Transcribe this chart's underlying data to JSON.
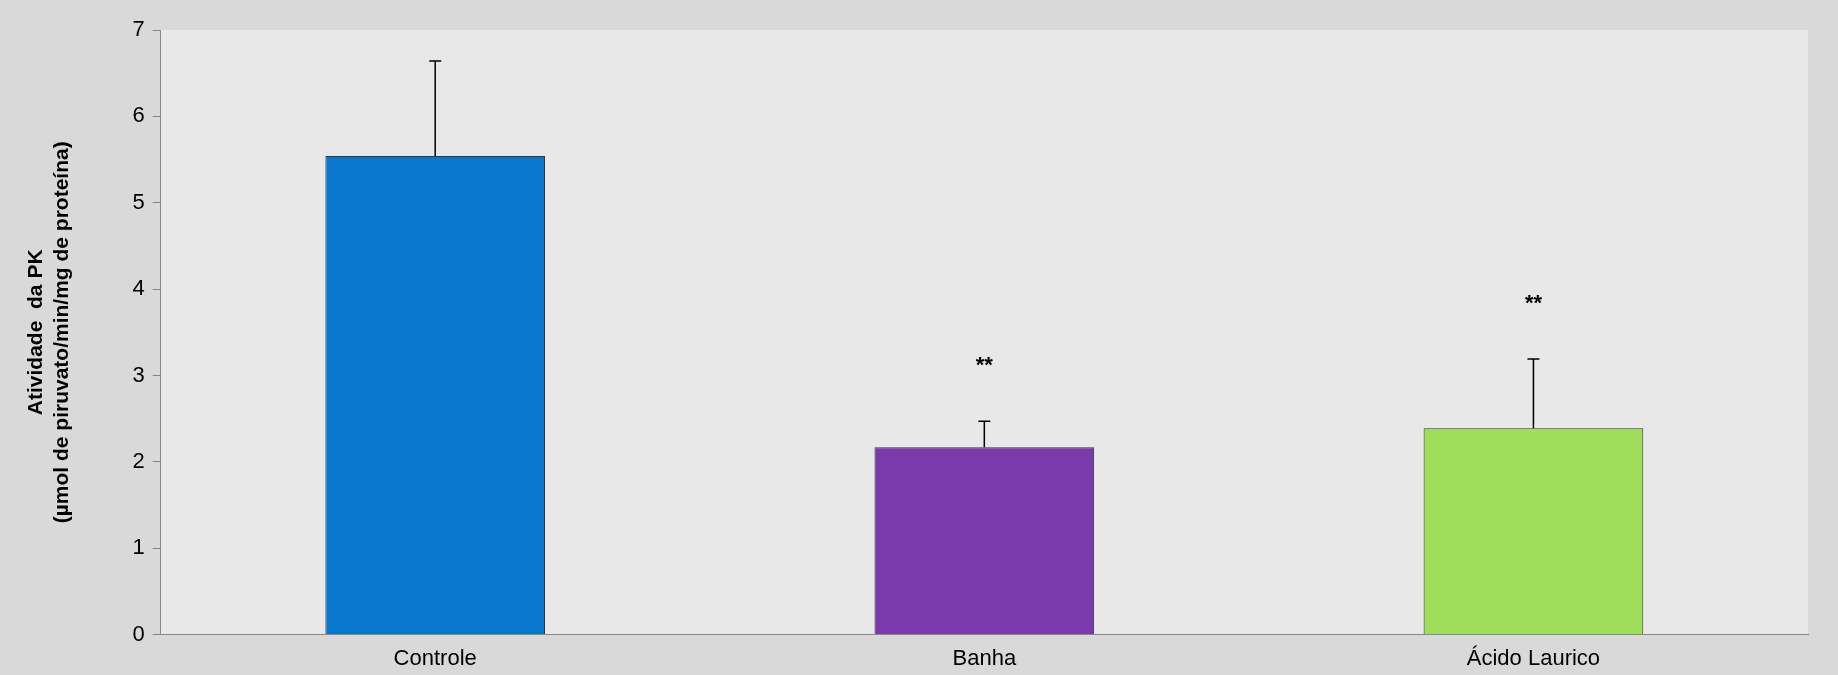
{
  "chart_data": {
    "type": "bar",
    "ylabel": "Atividade  da PK\n(µmol de piruvato/min/mg de proteína)",
    "categories": [
      "Controle",
      "Banha",
      "Ácido Laurico"
    ],
    "values": [
      5.54,
      2.17,
      2.39
    ],
    "colors": [
      "#0877cc",
      "#7a3aab",
      "#9ede5a"
    ],
    "errors": [
      [
        5.54,
        6.64
      ],
      [
        2.17,
        2.47
      ],
      [
        2.39,
        3.19
      ]
    ],
    "ylim": [
      0,
      7
    ],
    "yticks": [
      0,
      1,
      2,
      3,
      4,
      5,
      6,
      7
    ],
    "annotations": [
      "**",
      "**"
    ],
    "grid": false,
    "legend": false
  }
}
